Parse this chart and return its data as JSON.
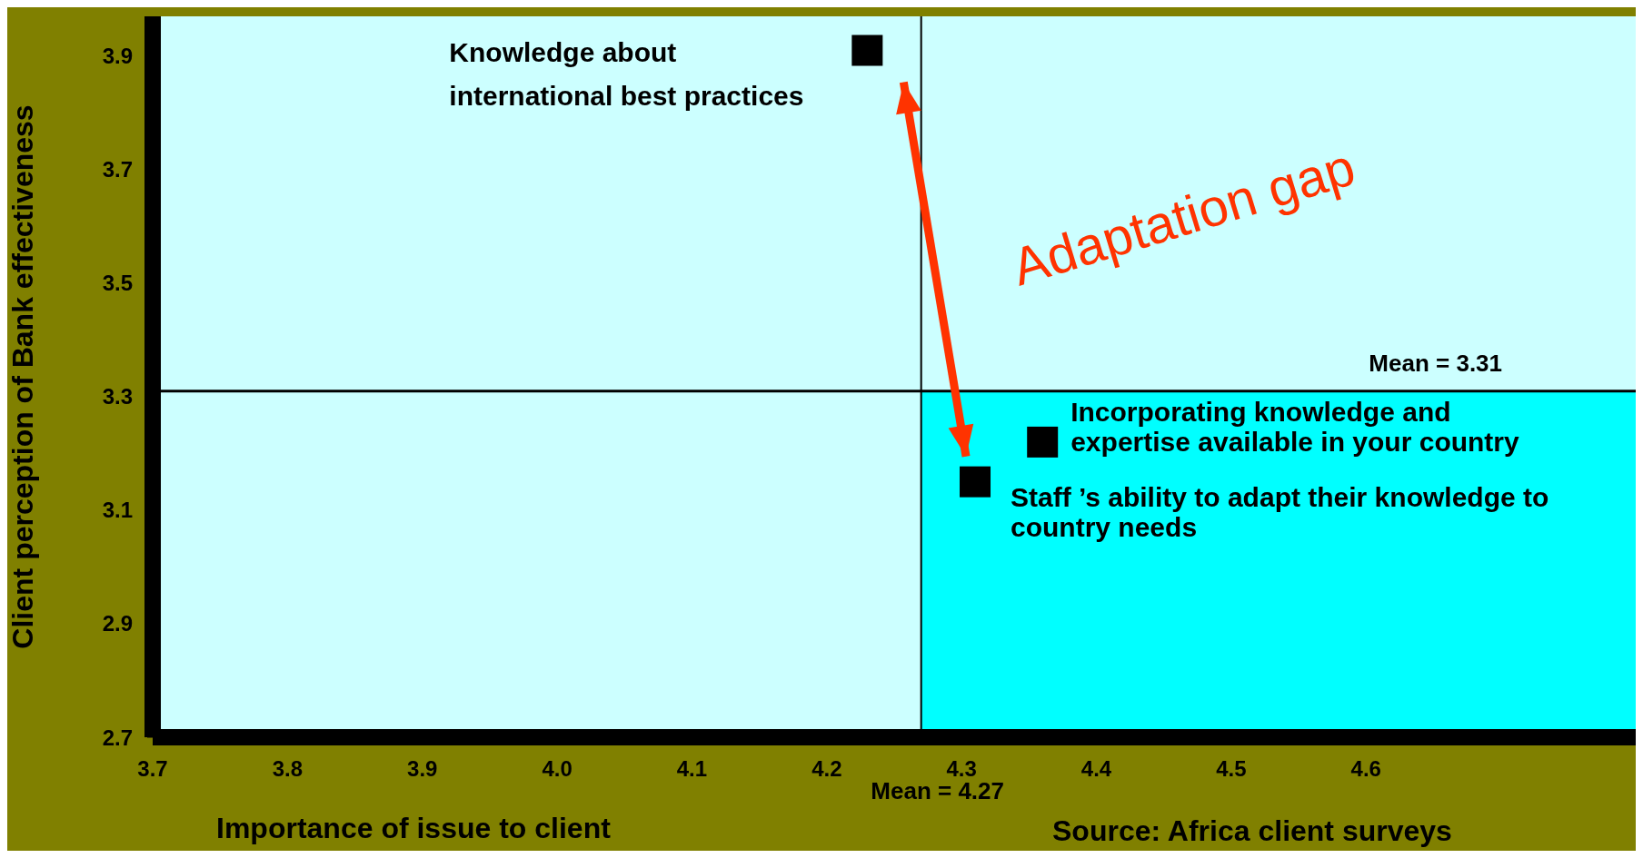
{
  "chart_data": {
    "type": "scatter",
    "xlabel": "Importance of issue to client",
    "ylabel": "Client perception of Bank effectiveness",
    "x": [
      4.23,
      4.36,
      4.31
    ],
    "series": [
      {
        "color": "#000000",
        "values": [
          3.91,
          3.22,
          3.15
        ]
      }
    ],
    "marker": "square",
    "xlim": [
      3.7,
      4.8
    ],
    "xticks": [
      3.7,
      3.8,
      3.9,
      {
        "value": 4,
        "label": "4.0"
      },
      4.1,
      4.2,
      4.3,
      4.4,
      4.5,
      4.6
    ],
    "ylim": [
      2.7,
      3.97
    ],
    "yticks": [
      2.7,
      2.9,
      3.1,
      3.3,
      3.5,
      3.7,
      3.9
    ],
    "ref_lines": [
      {
        "axis": "x",
        "value": 4.27,
        "label": "Mean = 4.27",
        "color": "#000000"
      },
      {
        "axis": "y",
        "value": 3.31,
        "label": "Mean = 3.31",
        "color": "#000000"
      }
    ],
    "bands": [
      {
        "axis": "x",
        "from": 4.27,
        "to": 4.8,
        "color": "#00ffff"
      }
    ],
    "annotations": [
      {
        "text": "Knowledge about international best practices",
        "x": 4.23,
        "y": 3.91
      },
      {
        "text": "Incorporating knowledge and expertise available in your country",
        "x": 4.36,
        "y": 3.22
      },
      {
        "text": "Staff ’s ability to adapt their knowledge to country needs",
        "x": 4.31,
        "y": 3.15
      },
      "Adaptation gap",
      "Source: Africa client surveys"
    ],
    "legend": false,
    "grid": false
  }
}
